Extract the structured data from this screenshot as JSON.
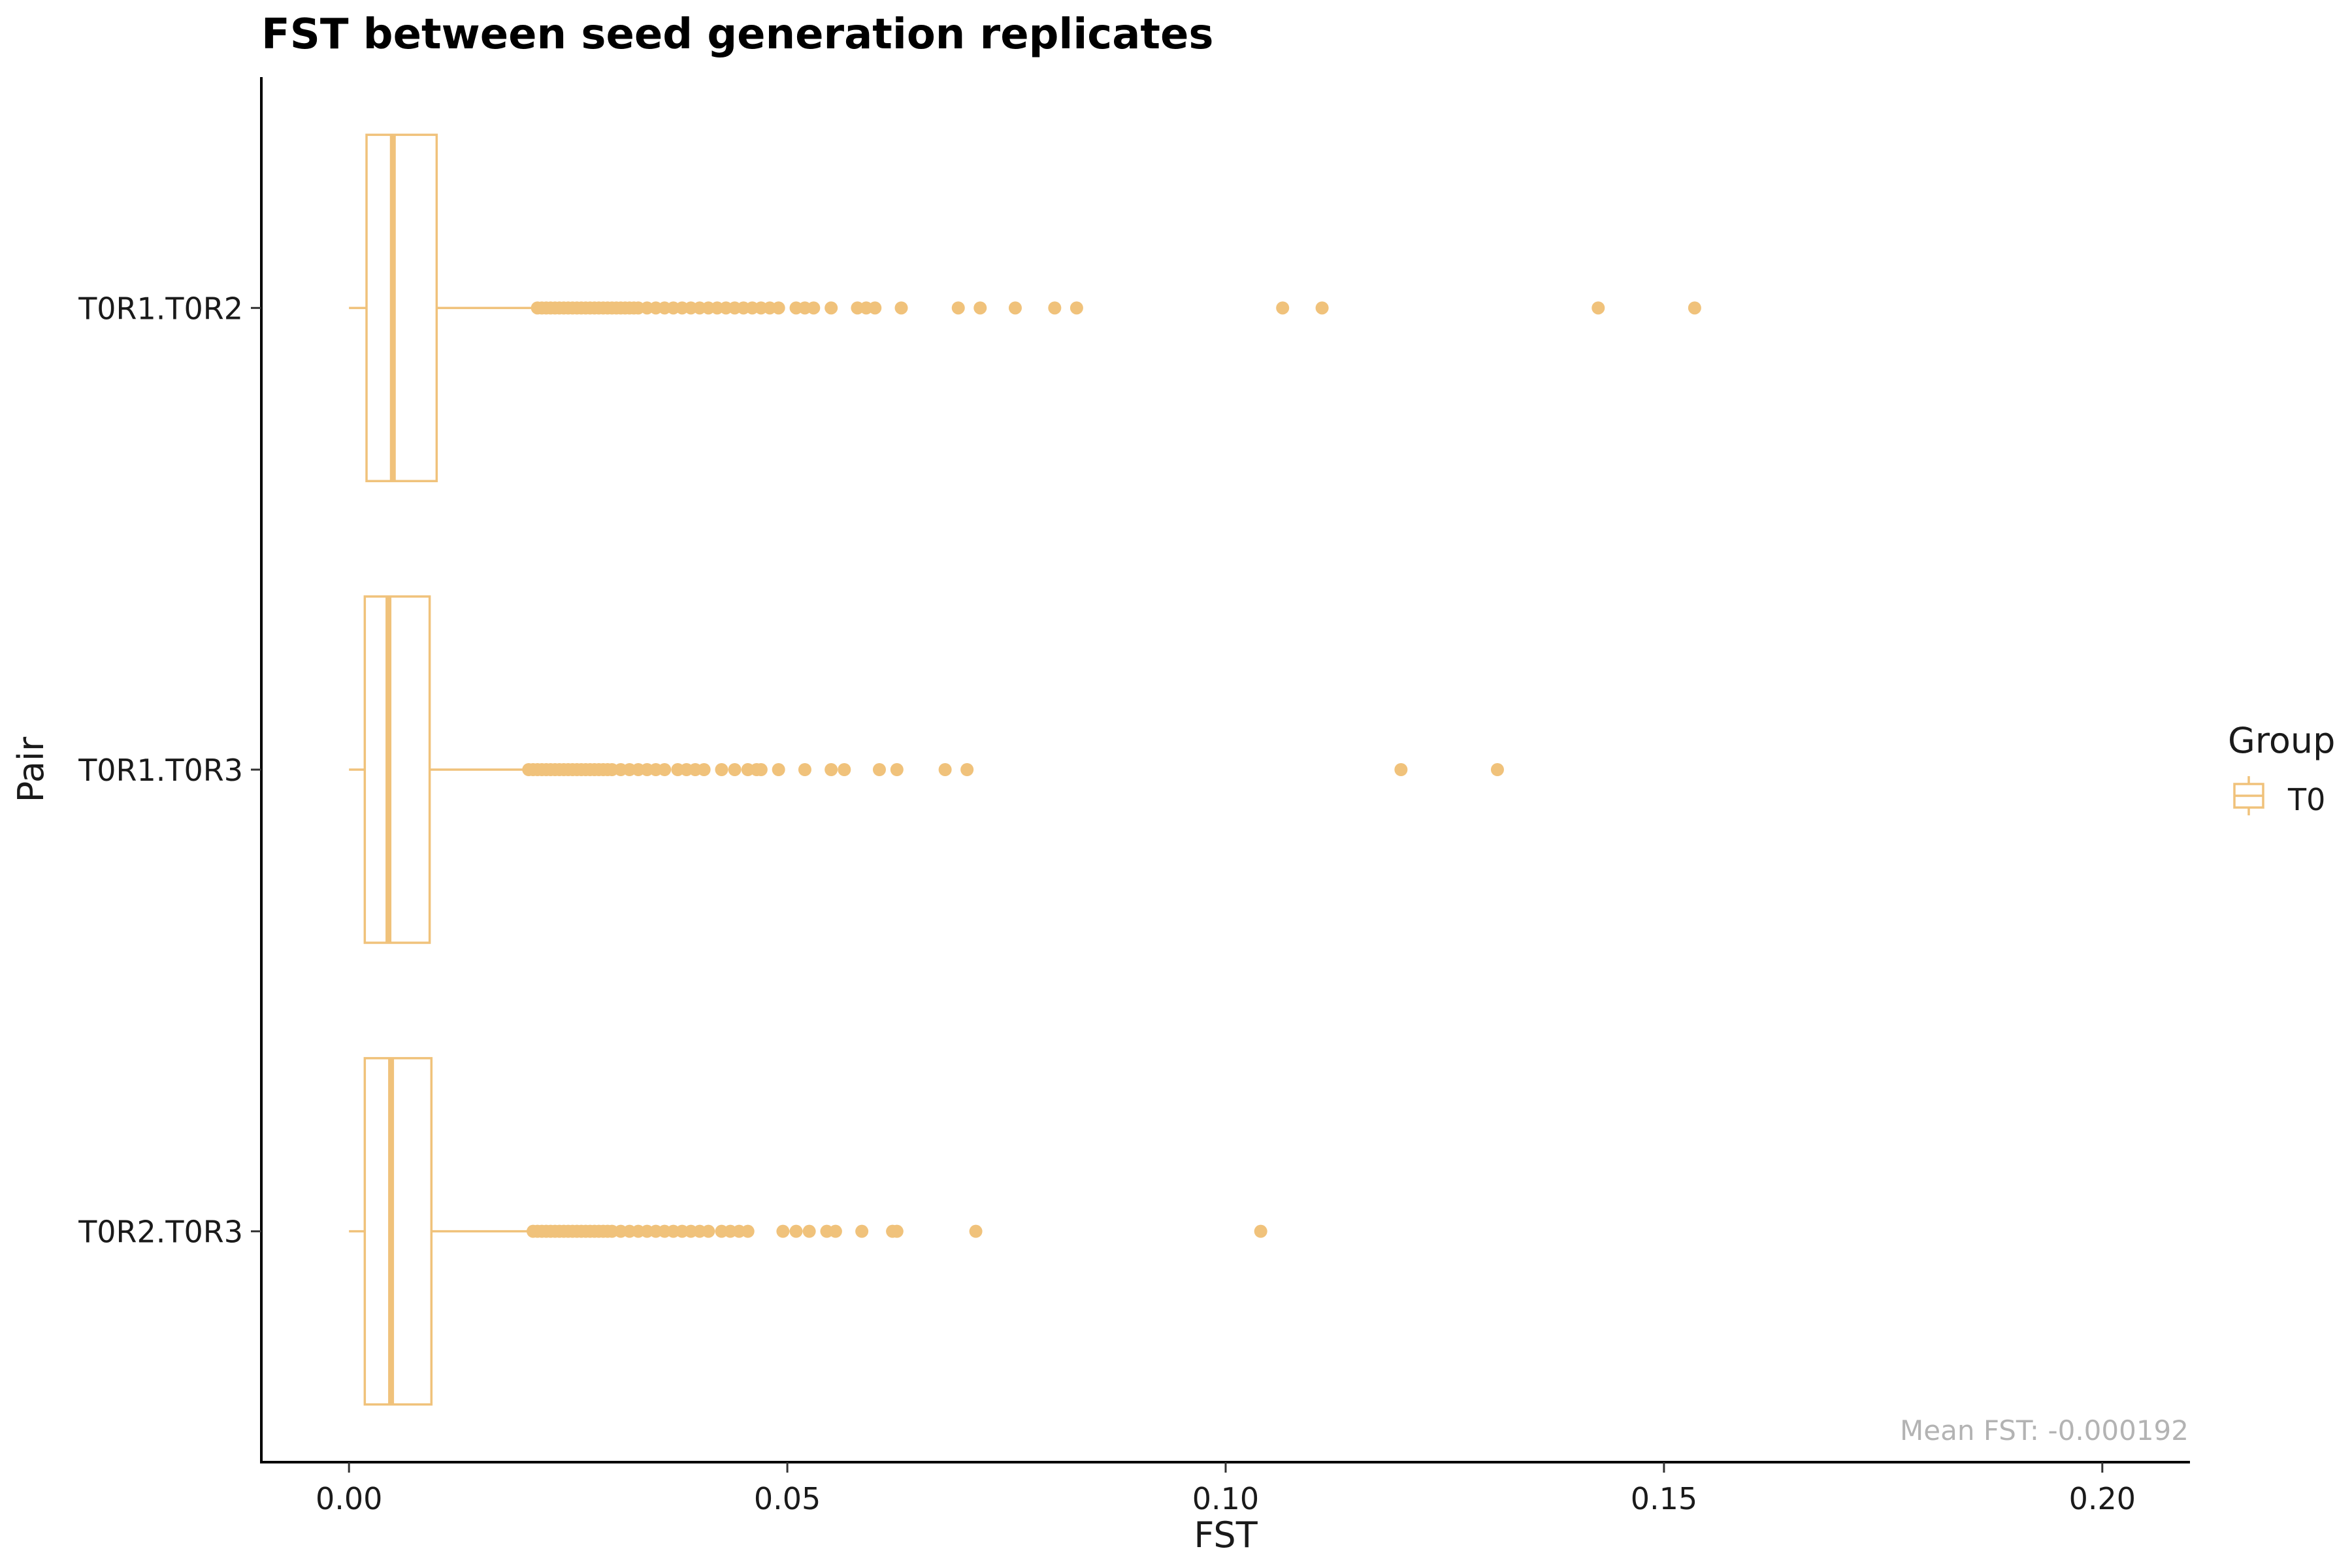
{
  "chart_data": {
    "type": "boxplot",
    "orientation": "horizontal",
    "title": "FST between seed generation replicates",
    "xlabel": "FST",
    "ylabel": "Pair",
    "xlim": [
      -0.01,
      0.21
    ],
    "x_ticks": [
      0.0,
      0.05,
      0.1,
      0.15,
      0.2
    ],
    "x_tick_labels": [
      "0.00",
      "0.05",
      "0.10",
      "0.15",
      "0.20"
    ],
    "categories": [
      "T0R1.T0R2",
      "T0R1.T0R3",
      "T0R2.T0R3"
    ],
    "legend": {
      "title": "Group",
      "entries": [
        "T0"
      ],
      "position": "right"
    },
    "grid": false,
    "color": "#F0C27B",
    "annotation": "Mean FST: -0.000192",
    "series": [
      {
        "name": "T0",
        "boxes": [
          {
            "category": "T0R1.T0R2",
            "whisker_low": 0.0,
            "q1": 0.002,
            "median": 0.005,
            "q3": 0.01,
            "whisker_high": 0.021,
            "outliers": [
              0.0215,
              0.022,
              0.0225,
              0.023,
              0.0235,
              0.024,
              0.0245,
              0.025,
              0.0255,
              0.026,
              0.0265,
              0.027,
              0.0275,
              0.028,
              0.0285,
              0.029,
              0.0295,
              0.03,
              0.0305,
              0.031,
              0.0315,
              0.032,
              0.0325,
              0.033,
              0.034,
              0.035,
              0.036,
              0.037,
              0.038,
              0.039,
              0.04,
              0.041,
              0.042,
              0.043,
              0.044,
              0.045,
              0.046,
              0.047,
              0.048,
              0.049,
              0.051,
              0.052,
              0.053,
              0.055,
              0.058,
              0.059,
              0.06,
              0.063,
              0.0695,
              0.072,
              0.076,
              0.0805,
              0.083,
              0.1065,
              0.111,
              0.1425,
              0.1535
            ]
          },
          {
            "category": "T0R1.T0R3",
            "whisker_low": 0.0,
            "q1": 0.0018,
            "median": 0.0045,
            "q3": 0.0092,
            "whisker_high": 0.02,
            "outliers": [
              0.0205,
              0.021,
              0.0215,
              0.022,
              0.0225,
              0.023,
              0.0235,
              0.024,
              0.0245,
              0.025,
              0.0255,
              0.026,
              0.0265,
              0.027,
              0.0275,
              0.028,
              0.0285,
              0.029,
              0.0295,
              0.03,
              0.031,
              0.032,
              0.033,
              0.034,
              0.035,
              0.036,
              0.0375,
              0.0385,
              0.0395,
              0.0405,
              0.0425,
              0.044,
              0.0455,
              0.0465,
              0.047,
              0.049,
              0.052,
              0.055,
              0.0565,
              0.0605,
              0.0625,
              0.068,
              0.0705,
              0.12,
              0.131
            ]
          },
          {
            "category": "T0R2.T0R3",
            "whisker_low": 0.0,
            "q1": 0.0018,
            "median": 0.0048,
            "q3": 0.0094,
            "whisker_high": 0.0205,
            "outliers": [
              0.021,
              0.0215,
              0.022,
              0.0225,
              0.023,
              0.0235,
              0.024,
              0.0245,
              0.025,
              0.0255,
              0.026,
              0.0265,
              0.027,
              0.0275,
              0.028,
              0.0285,
              0.029,
              0.0295,
              0.03,
              0.031,
              0.032,
              0.033,
              0.034,
              0.035,
              0.036,
              0.037,
              0.038,
              0.039,
              0.04,
              0.041,
              0.0425,
              0.0435,
              0.0445,
              0.0455,
              0.0495,
              0.051,
              0.0525,
              0.0545,
              0.0555,
              0.0585,
              0.062,
              0.0625,
              0.0715,
              0.104
            ]
          }
        ]
      }
    ]
  }
}
